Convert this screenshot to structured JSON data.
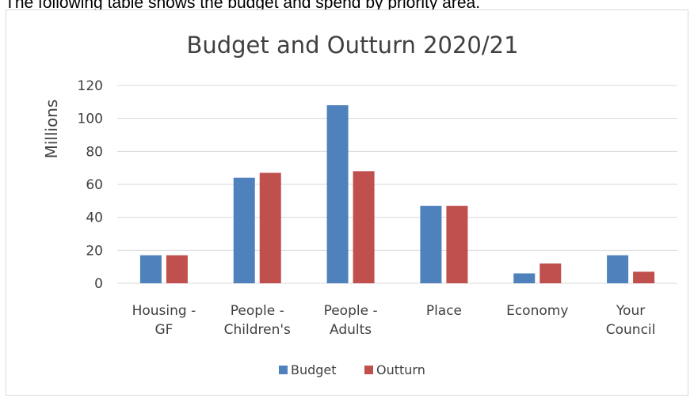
{
  "caption": "The following table shows the budget and spend by priority area.",
  "colors": {
    "budget": "#4f81bd",
    "outturn": "#c0504d",
    "grid": "#d9d9d9",
    "text": "#404040"
  },
  "chart_data": {
    "type": "bar",
    "title": "Budget and Outturn 2020/21",
    "ylabel": "Millions",
    "xlabel": "",
    "ylim": [
      0,
      120
    ],
    "yticks": [
      0,
      20,
      40,
      60,
      80,
      100,
      120
    ],
    "grid": true,
    "legend_position": "bottom",
    "categories": [
      [
        "Housing -",
        "GF"
      ],
      [
        "People -",
        "Children's"
      ],
      [
        "People -",
        "Adults"
      ],
      [
        "Place"
      ],
      [
        "Economy"
      ],
      [
        "Your",
        "Council"
      ]
    ],
    "series": [
      {
        "name": "Budget",
        "color": "#4f81bd",
        "values": [
          17,
          64,
          108,
          47,
          6,
          17
        ]
      },
      {
        "name": "Outturn",
        "color": "#c0504d",
        "values": [
          17,
          67,
          68,
          47,
          12,
          7
        ]
      }
    ]
  }
}
